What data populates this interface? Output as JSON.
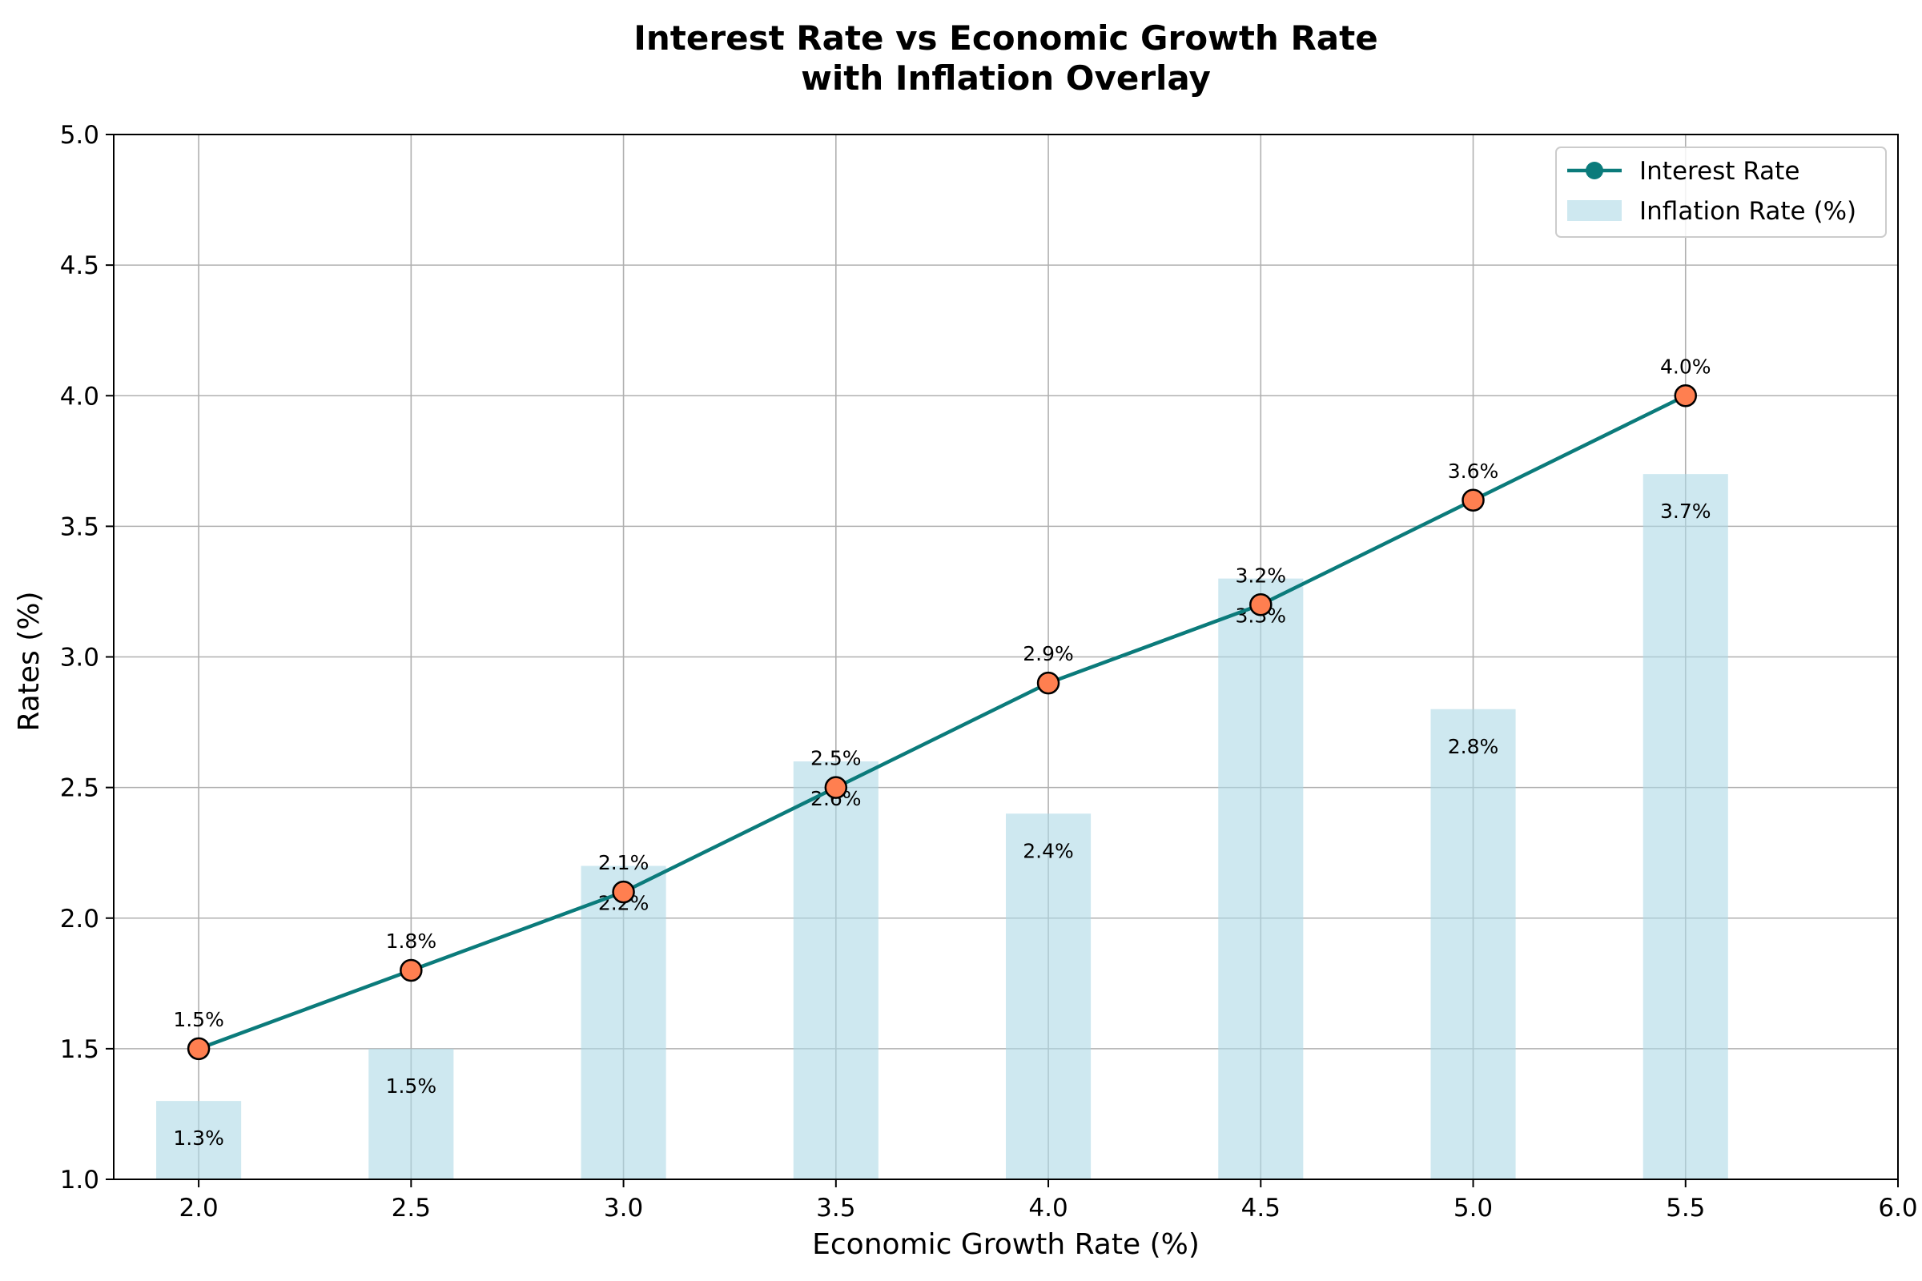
{
  "chart_data": {
    "type": "line",
    "title": [
      "Interest Rate vs Economic Growth Rate",
      "with Inflation Overlay"
    ],
    "xlabel": "Economic Growth Rate (%)",
    "ylabel": "Rates (%)",
    "xlim": [
      1.8,
      6.0
    ],
    "ylim": [
      1.0,
      5.0
    ],
    "xticks": [
      2.0,
      2.5,
      3.0,
      3.5,
      4.0,
      4.5,
      5.0,
      5.5,
      6.0
    ],
    "xtick_labels": [
      "2.0",
      "2.5",
      "3.0",
      "3.5",
      "4.0",
      "4.5",
      "5.0",
      "5.5",
      "6.0"
    ],
    "yticks": [
      1.0,
      1.5,
      2.0,
      2.5,
      3.0,
      3.5,
      4.0,
      4.5,
      5.0
    ],
    "ytick_labels": [
      "1.0",
      "1.5",
      "2.0",
      "2.5",
      "3.0",
      "3.5",
      "4.0",
      "4.5",
      "5.0"
    ],
    "grid": true,
    "legend_position": "top-right",
    "x": [
      2.0,
      2.5,
      3.0,
      3.5,
      4.0,
      4.5,
      5.0,
      5.5
    ],
    "series": [
      {
        "name": "Interest Rate",
        "kind": "line",
        "values": [
          1.5,
          1.8,
          2.1,
          2.5,
          2.9,
          3.2,
          3.6,
          4.0
        ],
        "labels": [
          "1.5%",
          "1.8%",
          "2.1%",
          "2.5%",
          "2.9%",
          "3.2%",
          "3.6%",
          "4.0%"
        ],
        "line_color": "#0b7b7b",
        "marker_color": "#ff7f50",
        "marker_edge": "#000000"
      },
      {
        "name": "Inflation Rate (%)",
        "kind": "bar",
        "values": [
          1.3,
          1.5,
          2.2,
          2.6,
          2.4,
          3.3,
          2.8,
          3.7
        ],
        "labels": [
          "1.3%",
          "1.5%",
          "2.2%",
          "2.6%",
          "2.4%",
          "3.3%",
          "2.8%",
          "3.7%"
        ],
        "bar_width": 0.2,
        "color": "#add8e6"
      }
    ]
  }
}
